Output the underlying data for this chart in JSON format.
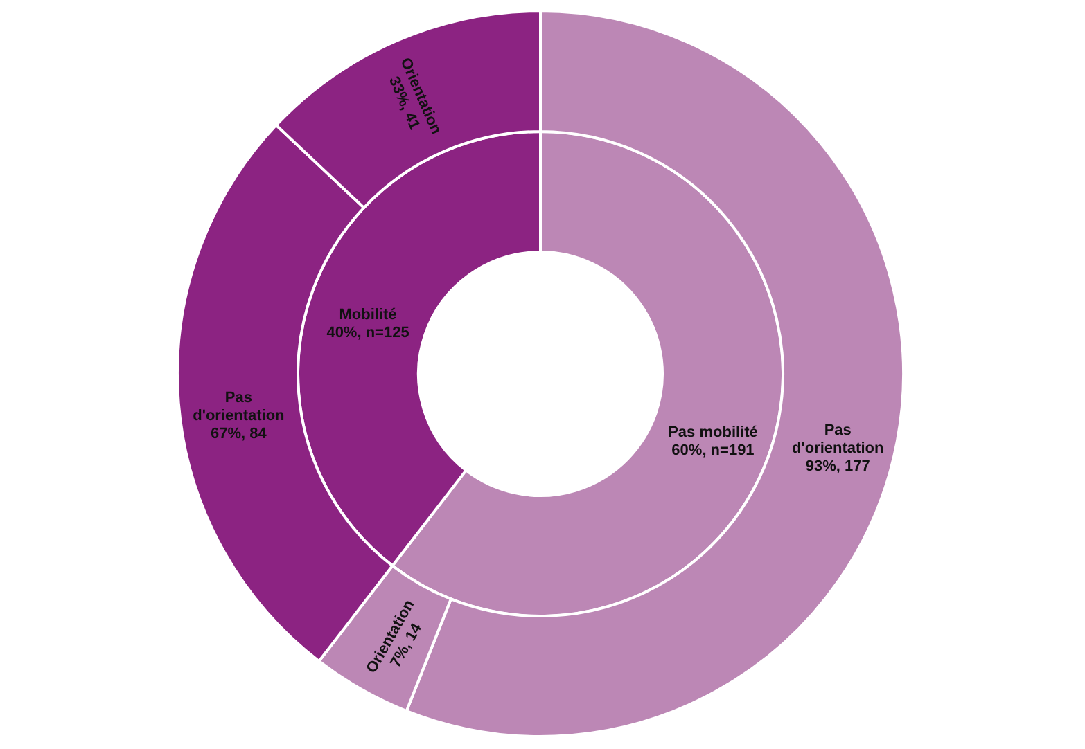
{
  "chart_data": [
    {
      "type": "donut",
      "categories": [
        "Pas mobilité",
        "Mobilité"
      ],
      "values": [
        191,
        125
      ],
      "colors": [
        "#bc87b5",
        "#8c2382"
      ],
      "value_labels": [
        "60%, n=191",
        "40%, n=125"
      ]
    },
    {
      "type": "donut",
      "categories": [
        "Pas d'orientation",
        "Orientation",
        "Pas d'orientation",
        "Orientation"
      ],
      "values": [
        177,
        14,
        84,
        41
      ],
      "colors": [
        "#bc87b5",
        "#bc87b5",
        "#8c2382",
        "#8c2382"
      ],
      "value_labels": [
        "93%, 177",
        "7%, 14",
        "67%, 84",
        "33%, 41"
      ]
    }
  ]
}
